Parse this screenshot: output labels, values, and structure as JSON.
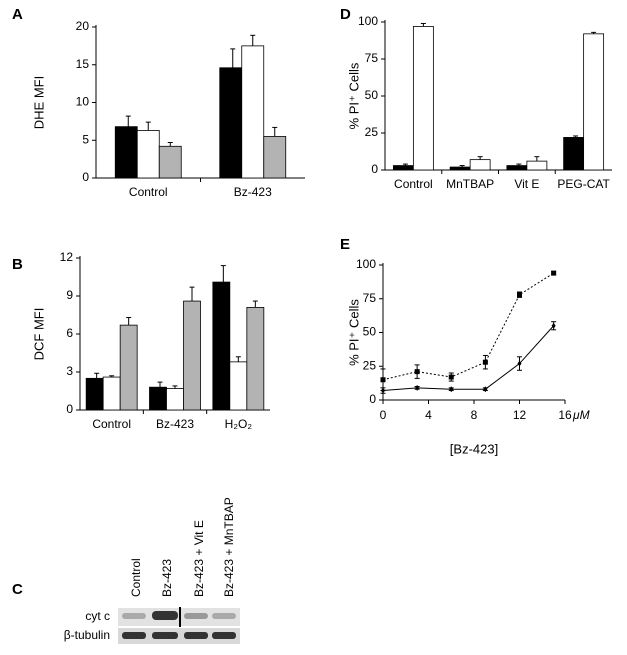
{
  "chart_data": [
    {
      "panel": "A",
      "type": "bar",
      "ylabel": "DHE  MFI",
      "categories": [
        "Control",
        "Bz-423"
      ],
      "series": [
        {
          "color": "#000000",
          "values": [
            6.8,
            14.6
          ],
          "errors": [
            1.4,
            2.5
          ]
        },
        {
          "color": "#ffffff",
          "values": [
            6.3,
            17.5
          ],
          "errors": [
            1.1,
            1.4
          ]
        },
        {
          "color": "#b3b3b3",
          "values": [
            4.2,
            5.5
          ],
          "errors": [
            0.5,
            1.2
          ]
        }
      ],
      "ylim": [
        0,
        20
      ],
      "yticks": [
        0,
        5,
        10,
        15,
        20
      ]
    },
    {
      "panel": "B",
      "type": "bar",
      "ylabel": "DCF  MFI",
      "categories": [
        "Control",
        "Bz-423",
        "H₂O₂"
      ],
      "series": [
        {
          "color": "#000000",
          "values": [
            2.5,
            1.8,
            10.1
          ],
          "errors": [
            0.4,
            0.4,
            1.3
          ]
        },
        {
          "color": "#ffffff",
          "values": [
            2.6,
            1.7,
            3.8
          ],
          "errors": [
            0.1,
            0.2,
            0.4
          ]
        },
        {
          "color": "#b3b3b3",
          "values": [
            6.7,
            8.6,
            8.1
          ],
          "errors": [
            0.6,
            1.1,
            0.5
          ]
        }
      ],
      "ylim": [
        0,
        12
      ],
      "yticks": [
        0,
        3,
        6,
        9,
        12
      ]
    },
    {
      "panel": "D",
      "type": "bar",
      "ylabel": "% PI⁺ Cells",
      "categories": [
        "Control",
        "MnTBAP",
        "Vit E",
        "PEG-CAT"
      ],
      "series": [
        {
          "color": "#000000",
          "values": [
            3,
            2,
            3,
            22
          ],
          "errors": [
            1,
            1,
            1,
            1
          ]
        },
        {
          "color": "#ffffff",
          "values": [
            97,
            7,
            6,
            92
          ],
          "errors": [
            2,
            2,
            3,
            1
          ]
        }
      ],
      "ylim": [
        0,
        100
      ],
      "yticks": [
        0,
        25,
        50,
        75,
        100
      ]
    },
    {
      "panel": "E",
      "type": "line",
      "ylabel": "% PI⁺ Cells",
      "xlabel": "[Bz-423]",
      "xunit": "μM",
      "x": [
        0,
        3,
        6,
        9,
        12,
        15
      ],
      "series": [
        {
          "color": "#000000",
          "dash": true,
          "marker": "square",
          "values": [
            15,
            21,
            17,
            28,
            78,
            94
          ],
          "errors": [
            8,
            5,
            3,
            5,
            2,
            1
          ]
        },
        {
          "color": "#000000",
          "dash": false,
          "marker": "diamond",
          "values": [
            7,
            9,
            8,
            8,
            27,
            55
          ],
          "errors": [
            2,
            1,
            1,
            1,
            5,
            3
          ]
        }
      ],
      "xlim": [
        0,
        16
      ],
      "xticks": [
        0,
        4,
        8,
        12,
        16
      ],
      "ylim": [
        0,
        100
      ],
      "yticks": [
        0,
        25,
        50,
        75,
        100
      ]
    }
  ],
  "blot": {
    "panel": "C",
    "lanes": [
      "Control",
      "Bz-423",
      "Bz-423 + Vit E",
      "Bz-423 + MnTBAP"
    ],
    "rows": [
      "cyt c",
      "β-tubulin"
    ]
  }
}
